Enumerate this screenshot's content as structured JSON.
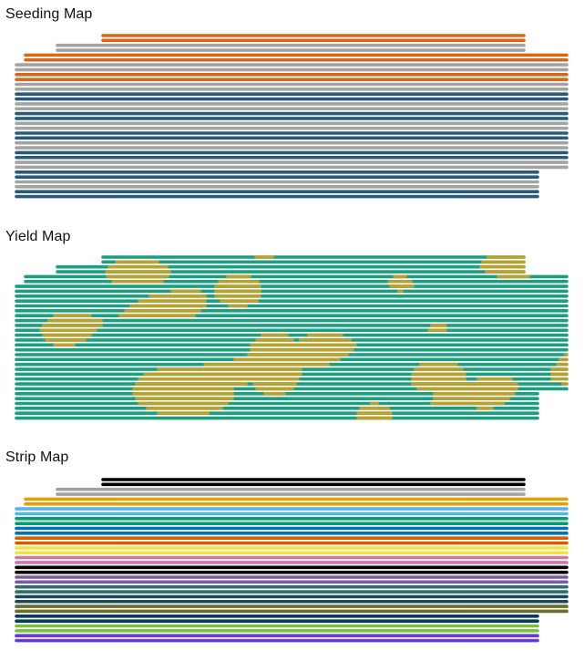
{
  "panels": {
    "seeding": {
      "title": "Seeding Map"
    },
    "yield": {
      "title": "Yield Map"
    },
    "strip": {
      "title": "Strip Map"
    }
  },
  "colors": {
    "seeding_orange": "#d4691b",
    "seeding_gray": "#a3a3a3",
    "seeding_blue": "#2a5a7a",
    "yield_green": "#1c9e80",
    "yield_gold": "#c9a227",
    "strip": [
      "#000000",
      "#000000",
      "#a3a3a3",
      "#a3a3a3",
      "#e69f00",
      "#e69f00",
      "#56b4e9",
      "#56b4e9",
      "#009e73",
      "#009e73",
      "#0072b2",
      "#0072b2",
      "#d55e00",
      "#d55e00",
      "#f0e442",
      "#f0e442",
      "#cc79a7",
      "#cc79a7",
      "#000000",
      "#000000",
      "#7b5c9e",
      "#7b5c9e",
      "#2e6b6b",
      "#2e6b6b",
      "#1a4a5a",
      "#1a4a5a",
      "#6b6b2a",
      "#6b6b2a",
      "#0b3a5a",
      "#0b3a5a",
      "#7ac142",
      "#7ac142",
      "#6a3ad6",
      "#6a3ad6"
    ]
  },
  "seeding_pattern": [
    "orange",
    "orange",
    "gray",
    "gray",
    "orange",
    "orange",
    "gray",
    "gray",
    "orange",
    "orange",
    "gray",
    "gray",
    "blue",
    "blue",
    "gray",
    "gray",
    "blue",
    "blue",
    "gray",
    "gray",
    "blue",
    "blue",
    "gray",
    "gray",
    "blue",
    "blue",
    "gray",
    "gray",
    "blue",
    "blue",
    "gray",
    "gray",
    "blue",
    "blue"
  ]
}
